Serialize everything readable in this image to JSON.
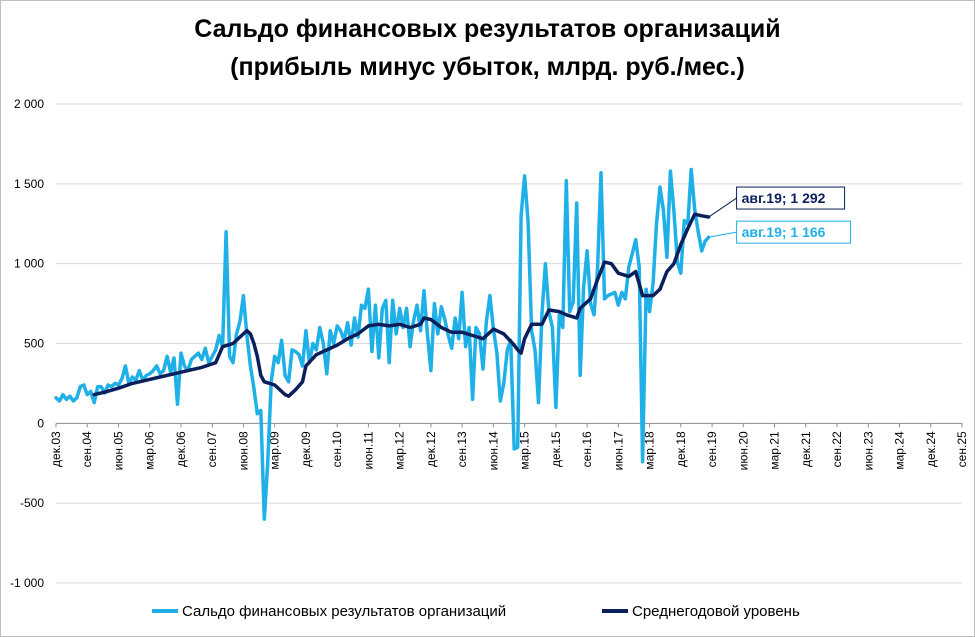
{
  "chart_data": {
    "type": "line",
    "title_line1": "Сальдо финансовых результатов организаций",
    "title_line2": "(прибыль минус убыток, млрд. руб./мес.)",
    "xlabel": "",
    "ylabel": "",
    "ylim": [
      -1000,
      2000
    ],
    "y_ticks": [
      {
        "value": 2000,
        "label": "2 000"
      },
      {
        "value": 1500,
        "label": "1 500"
      },
      {
        "value": 1000,
        "label": "1 000"
      },
      {
        "value": 500,
        "label": "500"
      },
      {
        "value": 0,
        "label": "0"
      },
      {
        "value": -500,
        "label": "-500"
      },
      {
        "value": -1000,
        "label": "-1 000"
      }
    ],
    "x_start": "2003-12",
    "x_end": "2025-09",
    "x_ticks": [
      "дек.03",
      "сен.04",
      "июн.05",
      "мар.06",
      "дек.06",
      "сен.07",
      "июн.08",
      "мар.09",
      "дек.09",
      "сен.10",
      "июн.11",
      "мар.12",
      "дек.12",
      "сен.13",
      "июн.14",
      "мар.15",
      "дек.15",
      "сен.16",
      "июн.17",
      "мар.18",
      "дек.18",
      "сен.19",
      "июн.20",
      "мар.21",
      "дек.21",
      "сен.22",
      "июн.23",
      "мар.24",
      "дек.24",
      "сен.25"
    ],
    "grid": true,
    "legend_position": "bottom",
    "series": [
      {
        "name": "Сальдо финансовых результатов организаций",
        "color": "#1fb0e8",
        "points": [
          [
            "2003-12",
            160
          ],
          [
            "2004-01",
            140
          ],
          [
            "2004-02",
            180
          ],
          [
            "2004-03",
            150
          ],
          [
            "2004-04",
            170
          ],
          [
            "2004-05",
            140
          ],
          [
            "2004-06",
            160
          ],
          [
            "2004-07",
            230
          ],
          [
            "2004-08",
            240
          ],
          [
            "2004-09",
            180
          ],
          [
            "2004-10",
            200
          ],
          [
            "2004-11",
            130
          ],
          [
            "2004-12",
            230
          ],
          [
            "2005-01",
            230
          ],
          [
            "2005-02",
            190
          ],
          [
            "2005-03",
            240
          ],
          [
            "2005-04",
            230
          ],
          [
            "2005-05",
            250
          ],
          [
            "2005-06",
            240
          ],
          [
            "2005-07",
            280
          ],
          [
            "2005-08",
            360
          ],
          [
            "2005-09",
            250
          ],
          [
            "2005-10",
            290
          ],
          [
            "2005-11",
            270
          ],
          [
            "2005-12",
            330
          ],
          [
            "2006-01",
            270
          ],
          [
            "2006-02",
            300
          ],
          [
            "2006-03",
            310
          ],
          [
            "2006-04",
            330
          ],
          [
            "2006-05",
            360
          ],
          [
            "2006-06",
            310
          ],
          [
            "2006-07",
            330
          ],
          [
            "2006-08",
            420
          ],
          [
            "2006-09",
            320
          ],
          [
            "2006-10",
            410
          ],
          [
            "2006-11",
            120
          ],
          [
            "2006-12",
            440
          ],
          [
            "2007-01",
            360
          ],
          [
            "2007-02",
            330
          ],
          [
            "2007-03",
            400
          ],
          [
            "2007-04",
            420
          ],
          [
            "2007-05",
            440
          ],
          [
            "2007-06",
            400
          ],
          [
            "2007-07",
            470
          ],
          [
            "2007-08",
            380
          ],
          [
            "2007-09",
            420
          ],
          [
            "2007-10",
            460
          ],
          [
            "2007-11",
            550
          ],
          [
            "2007-12",
            480
          ],
          [
            "2008-01",
            1200
          ],
          [
            "2008-02",
            420
          ],
          [
            "2008-03",
            380
          ],
          [
            "2008-04",
            560
          ],
          [
            "2008-05",
            640
          ],
          [
            "2008-06",
            800
          ],
          [
            "2008-07",
            550
          ],
          [
            "2008-08",
            360
          ],
          [
            "2008-09",
            220
          ],
          [
            "2008-10",
            60
          ],
          [
            "2008-11",
            80
          ],
          [
            "2008-12",
            -600
          ],
          [
            "2009-01",
            -250
          ],
          [
            "2009-02",
            260
          ],
          [
            "2009-03",
            420
          ],
          [
            "2009-04",
            380
          ],
          [
            "2009-05",
            520
          ],
          [
            "2009-06",
            300
          ],
          [
            "2009-07",
            260
          ],
          [
            "2009-08",
            460
          ],
          [
            "2009-09",
            450
          ],
          [
            "2009-10",
            430
          ],
          [
            "2009-11",
            360
          ],
          [
            "2009-12",
            580
          ],
          [
            "2010-01",
            380
          ],
          [
            "2010-02",
            500
          ],
          [
            "2010-03",
            460
          ],
          [
            "2010-04",
            600
          ],
          [
            "2010-05",
            500
          ],
          [
            "2010-06",
            310
          ],
          [
            "2010-07",
            580
          ],
          [
            "2010-08",
            500
          ],
          [
            "2010-09",
            610
          ],
          [
            "2010-10",
            580
          ],
          [
            "2010-11",
            520
          ],
          [
            "2010-12",
            630
          ],
          [
            "2011-01",
            490
          ],
          [
            "2011-02",
            660
          ],
          [
            "2011-03",
            540
          ],
          [
            "2011-04",
            740
          ],
          [
            "2011-05",
            720
          ],
          [
            "2011-06",
            840
          ],
          [
            "2011-07",
            450
          ],
          [
            "2011-08",
            740
          ],
          [
            "2011-09",
            410
          ],
          [
            "2011-10",
            720
          ],
          [
            "2011-11",
            770
          ],
          [
            "2011-12",
            380
          ],
          [
            "2012-01",
            770
          ],
          [
            "2012-02",
            560
          ],
          [
            "2012-03",
            720
          ],
          [
            "2012-04",
            600
          ],
          [
            "2012-05",
            720
          ],
          [
            "2012-06",
            480
          ],
          [
            "2012-07",
            640
          ],
          [
            "2012-08",
            740
          ],
          [
            "2012-09",
            580
          ],
          [
            "2012-10",
            830
          ],
          [
            "2012-11",
            560
          ],
          [
            "2012-12",
            330
          ],
          [
            "2013-01",
            750
          ],
          [
            "2013-02",
            560
          ],
          [
            "2013-03",
            730
          ],
          [
            "2013-04",
            650
          ],
          [
            "2013-05",
            550
          ],
          [
            "2013-06",
            470
          ],
          [
            "2013-07",
            660
          ],
          [
            "2013-08",
            530
          ],
          [
            "2013-09",
            820
          ],
          [
            "2013-10",
            480
          ],
          [
            "2013-11",
            600
          ],
          [
            "2013-12",
            150
          ],
          [
            "2014-01",
            600
          ],
          [
            "2014-02",
            560
          ],
          [
            "2014-03",
            340
          ],
          [
            "2014-04",
            640
          ],
          [
            "2014-05",
            800
          ],
          [
            "2014-06",
            590
          ],
          [
            "2014-07",
            440
          ],
          [
            "2014-08",
            140
          ],
          [
            "2014-09",
            250
          ],
          [
            "2014-10",
            460
          ],
          [
            "2014-11",
            520
          ],
          [
            "2014-12",
            -160
          ],
          [
            "2015-01",
            -150
          ],
          [
            "2015-02",
            1300
          ],
          [
            "2015-03",
            1550
          ],
          [
            "2015-04",
            1260
          ],
          [
            "2015-05",
            580
          ],
          [
            "2015-06",
            460
          ],
          [
            "2015-07",
            130
          ],
          [
            "2015-08",
            690
          ],
          [
            "2015-09",
            1000
          ],
          [
            "2015-10",
            700
          ],
          [
            "2015-11",
            600
          ],
          [
            "2015-12",
            100
          ],
          [
            "2016-01",
            680
          ],
          [
            "2016-02",
            600
          ],
          [
            "2016-03",
            1520
          ],
          [
            "2016-04",
            700
          ],
          [
            "2016-05",
            760
          ],
          [
            "2016-06",
            1380
          ],
          [
            "2016-07",
            300
          ],
          [
            "2016-08",
            850
          ],
          [
            "2016-09",
            1080
          ],
          [
            "2016-10",
            750
          ],
          [
            "2016-11",
            680
          ],
          [
            "2016-12",
            960
          ],
          [
            "2017-01",
            1570
          ],
          [
            "2017-02",
            780
          ],
          [
            "2017-03",
            800
          ],
          [
            "2017-04",
            810
          ],
          [
            "2017-05",
            820
          ],
          [
            "2017-06",
            740
          ],
          [
            "2017-07",
            820
          ],
          [
            "2017-08",
            780
          ],
          [
            "2017-09",
            980
          ],
          [
            "2017-10",
            1060
          ],
          [
            "2017-11",
            1150
          ],
          [
            "2017-12",
            980
          ],
          [
            "2018-01",
            -240
          ],
          [
            "2018-02",
            840
          ],
          [
            "2018-03",
            700
          ],
          [
            "2018-04",
            880
          ],
          [
            "2018-05",
            1250
          ],
          [
            "2018-06",
            1480
          ],
          [
            "2018-07",
            1330
          ],
          [
            "2018-08",
            1040
          ],
          [
            "2018-09",
            1580
          ],
          [
            "2018-10",
            1330
          ],
          [
            "2018-11",
            1010
          ],
          [
            "2018-12",
            940
          ],
          [
            "2019-01",
            1270
          ],
          [
            "2019-02",
            1250
          ],
          [
            "2019-03",
            1590
          ],
          [
            "2019-04",
            1340
          ],
          [
            "2019-05",
            1200
          ],
          [
            "2019-06",
            1080
          ],
          [
            "2019-07",
            1140
          ],
          [
            "2019-08",
            1166
          ]
        ]
      },
      {
        "name": "Среднегодовой уровень",
        "color": "#0a1f5c",
        "points": [
          [
            "2004-11",
            180
          ],
          [
            "2005-02",
            195
          ],
          [
            "2005-06",
            220
          ],
          [
            "2005-10",
            250
          ],
          [
            "2006-02",
            270
          ],
          [
            "2006-06",
            290
          ],
          [
            "2006-10",
            310
          ],
          [
            "2007-02",
            330
          ],
          [
            "2007-06",
            350
          ],
          [
            "2007-10",
            380
          ],
          [
            "2007-12",
            480
          ],
          [
            "2008-03",
            500
          ],
          [
            "2008-06",
            560
          ],
          [
            "2008-07",
            580
          ],
          [
            "2008-08",
            560
          ],
          [
            "2008-09",
            500
          ],
          [
            "2008-10",
            420
          ],
          [
            "2008-11",
            300
          ],
          [
            "2008-12",
            260
          ],
          [
            "2009-03",
            240
          ],
          [
            "2009-06",
            180
          ],
          [
            "2009-07",
            170
          ],
          [
            "2009-09",
            210
          ],
          [
            "2009-11",
            260
          ],
          [
            "2009-12",
            360
          ],
          [
            "2010-03",
            430
          ],
          [
            "2010-06",
            460
          ],
          [
            "2010-09",
            490
          ],
          [
            "2010-12",
            530
          ],
          [
            "2011-03",
            560
          ],
          [
            "2011-06",
            610
          ],
          [
            "2011-09",
            620
          ],
          [
            "2011-12",
            610
          ],
          [
            "2012-03",
            620
          ],
          [
            "2012-06",
            600
          ],
          [
            "2012-09",
            620
          ],
          [
            "2012-10",
            660
          ],
          [
            "2012-12",
            650
          ],
          [
            "2013-03",
            600
          ],
          [
            "2013-06",
            570
          ],
          [
            "2013-09",
            570
          ],
          [
            "2013-12",
            550
          ],
          [
            "2014-03",
            530
          ],
          [
            "2014-06",
            590
          ],
          [
            "2014-09",
            560
          ],
          [
            "2014-12",
            490
          ],
          [
            "2015-01",
            460
          ],
          [
            "2015-02",
            440
          ],
          [
            "2015-03",
            530
          ],
          [
            "2015-05",
            620
          ],
          [
            "2015-08",
            620
          ],
          [
            "2015-10",
            710
          ],
          [
            "2016-01",
            700
          ],
          [
            "2016-03",
            680
          ],
          [
            "2016-06",
            660
          ],
          [
            "2016-07",
            720
          ],
          [
            "2016-10",
            780
          ],
          [
            "2016-12",
            900
          ],
          [
            "2017-02",
            1010
          ],
          [
            "2017-04",
            1000
          ],
          [
            "2017-06",
            940
          ],
          [
            "2017-09",
            920
          ],
          [
            "2017-11",
            950
          ],
          [
            "2018-01",
            800
          ],
          [
            "2018-04",
            800
          ],
          [
            "2018-06",
            840
          ],
          [
            "2018-08",
            950
          ],
          [
            "2018-10",
            1000
          ],
          [
            "2018-12",
            1120
          ],
          [
            "2019-02",
            1220
          ],
          [
            "2019-04",
            1310
          ],
          [
            "2019-06",
            1300
          ],
          [
            "2019-08",
            1292
          ]
        ]
      }
    ],
    "annotations": [
      {
        "text": "авг.19; 1 292",
        "x": "2019-08",
        "y": 1292,
        "series": 1
      },
      {
        "text": "авг.19;  1 166",
        "x": "2019-08",
        "y": 1166,
        "series": 0
      }
    ]
  }
}
